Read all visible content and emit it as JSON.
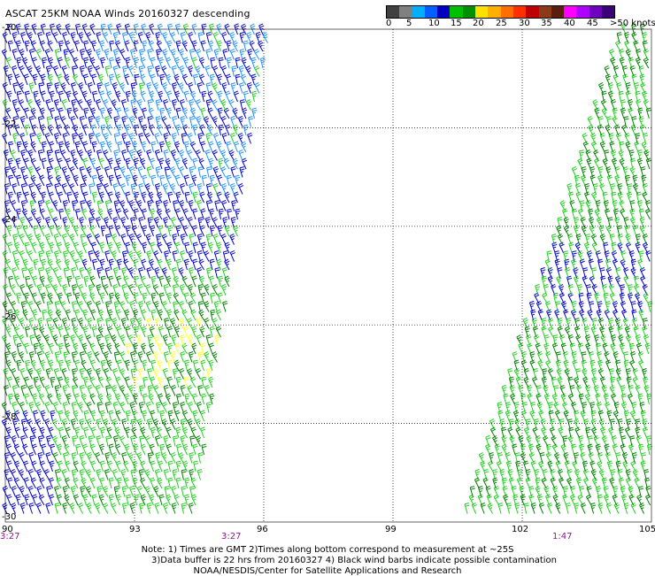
{
  "title": "ASCAT 25KM NOAA Winds 20160327 descending",
  "legend": {
    "colors": [
      "#404040",
      "#808080",
      "#00b0ff",
      "#0060ff",
      "#0000c0",
      "#00c000",
      "#009000",
      "#ffe000",
      "#ffb000",
      "#ff7000",
      "#ff3000",
      "#c00000",
      "#8b3a1a",
      "#5a1e0e",
      "#ff00ff",
      "#b000ff",
      "#7000c0",
      "#3c0078"
    ],
    "labels": [
      "0",
      "5",
      "10",
      "15",
      "20",
      "25",
      "30",
      "35",
      "40",
      "45",
      ">50 knots"
    ]
  },
  "lat_labels": [
    "-20",
    "-22",
    "-24",
    "-26",
    "-28",
    "-30"
  ],
  "lon_labels": [
    "90",
    "93",
    "96",
    "99",
    "102",
    "105"
  ],
  "time_labels": [
    "3:27",
    "3:27",
    "1:47"
  ],
  "notes": [
    "Note: 1) Times are GMT 2)Times along bottom correspond to measurement at ~25S",
    "3)Data buffer is 22 hrs from 20160327 4) Black wind barbs indicate possible contamination",
    "NOAA/NESDIS/Center for Satellite Applications and Research"
  ],
  "swaths": [
    {
      "name": "west-swath",
      "lon_range_top": [
        90,
        96.1
      ],
      "lon_range_bottom": [
        90,
        91.6
      ]
    },
    {
      "name": "east-swath",
      "lon_range_top": [
        104.6,
        105
      ],
      "lon_range_bottom": [
        99.7,
        105
      ]
    }
  ],
  "barb_colors": {
    "blue": "#0000d0",
    "light-blue": "#2090ff",
    "green": "#20d020",
    "dark-green": "#008000",
    "yellow": "#ffff30"
  }
}
